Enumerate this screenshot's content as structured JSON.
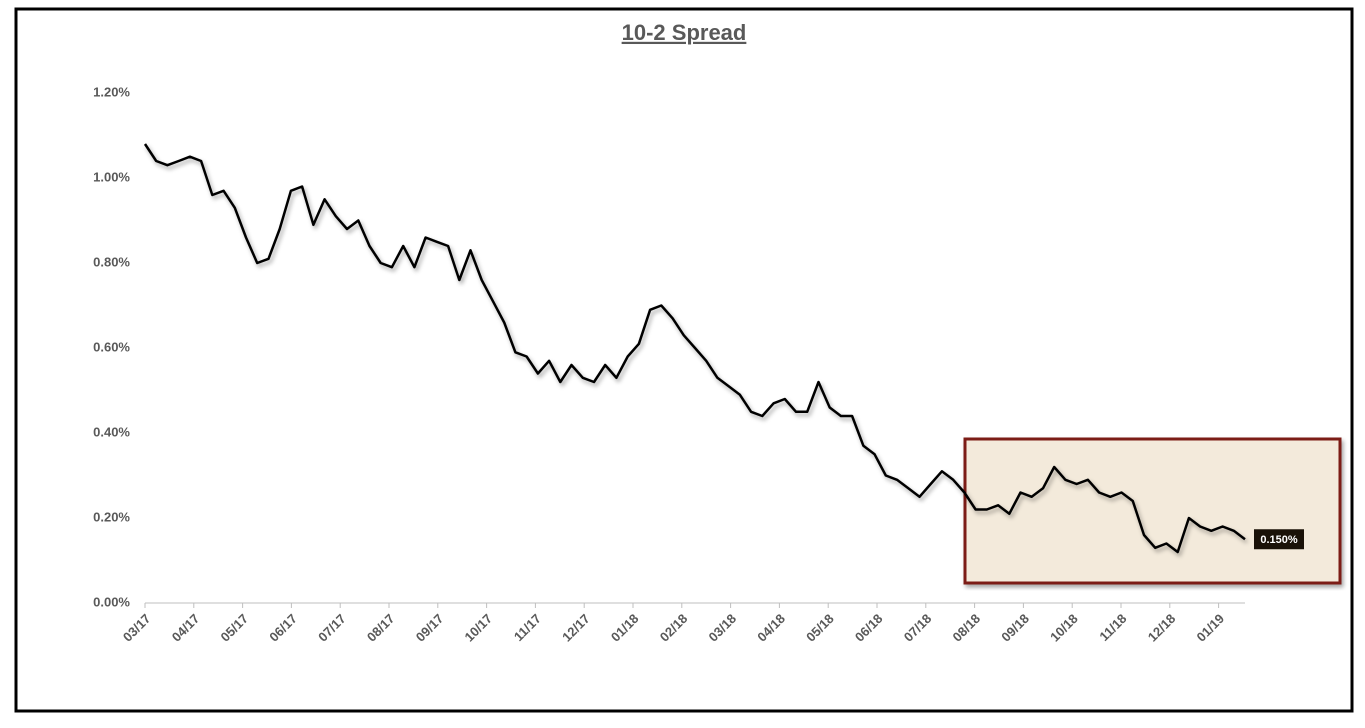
{
  "chart_data": {
    "type": "line",
    "title": "10-2 Spread",
    "xticks": [
      "03/17",
      "04/17",
      "05/17",
      "06/17",
      "07/17",
      "08/17",
      "09/17",
      "10/17",
      "11/17",
      "12/17",
      "01/18",
      "02/18",
      "03/18",
      "04/18",
      "05/18",
      "06/18",
      "07/18",
      "08/18",
      "09/18",
      "10/18",
      "11/18",
      "12/18",
      "01/19"
    ],
    "values": [
      1.08,
      1.04,
      1.03,
      1.04,
      1.05,
      1.04,
      0.96,
      0.97,
      0.93,
      0.86,
      0.8,
      0.81,
      0.88,
      0.97,
      0.98,
      0.89,
      0.95,
      0.91,
      0.88,
      0.9,
      0.84,
      0.8,
      0.79,
      0.84,
      0.79,
      0.86,
      0.85,
      0.84,
      0.76,
      0.83,
      0.76,
      0.71,
      0.66,
      0.59,
      0.58,
      0.54,
      0.57,
      0.52,
      0.56,
      0.53,
      0.52,
      0.56,
      0.53,
      0.58,
      0.61,
      0.69,
      0.7,
      0.67,
      0.63,
      0.6,
      0.57,
      0.53,
      0.51,
      0.49,
      0.45,
      0.44,
      0.47,
      0.48,
      0.45,
      0.45,
      0.52,
      0.46,
      0.44,
      0.44,
      0.37,
      0.35,
      0.3,
      0.29,
      0.27,
      0.25,
      0.28,
      0.31,
      0.29,
      0.26,
      0.22,
      0.22,
      0.23,
      0.21,
      0.26,
      0.25,
      0.27,
      0.32,
      0.29,
      0.28,
      0.29,
      0.26,
      0.25,
      0.26,
      0.24,
      0.16,
      0.13,
      0.14,
      0.12,
      0.2,
      0.18,
      0.17,
      0.18,
      0.17,
      0.15
    ],
    "color": "#000000",
    "ylim": [
      0,
      1.2
    ],
    "yticks": [
      {
        "value": 0,
        "label": "0.00%"
      },
      {
        "value": 0.2,
        "label": "0.20%"
      },
      {
        "value": 0.4,
        "label": "0.40%"
      },
      {
        "value": 0.6,
        "label": "0.60%"
      },
      {
        "value": 0.8,
        "label": "0.80%"
      },
      {
        "value": 1.0,
        "label": "1.00%"
      },
      {
        "value": 1.2,
        "label": "1.20%"
      }
    ],
    "annotations": [
      {
        "text": "0.150%"
      }
    ]
  }
}
